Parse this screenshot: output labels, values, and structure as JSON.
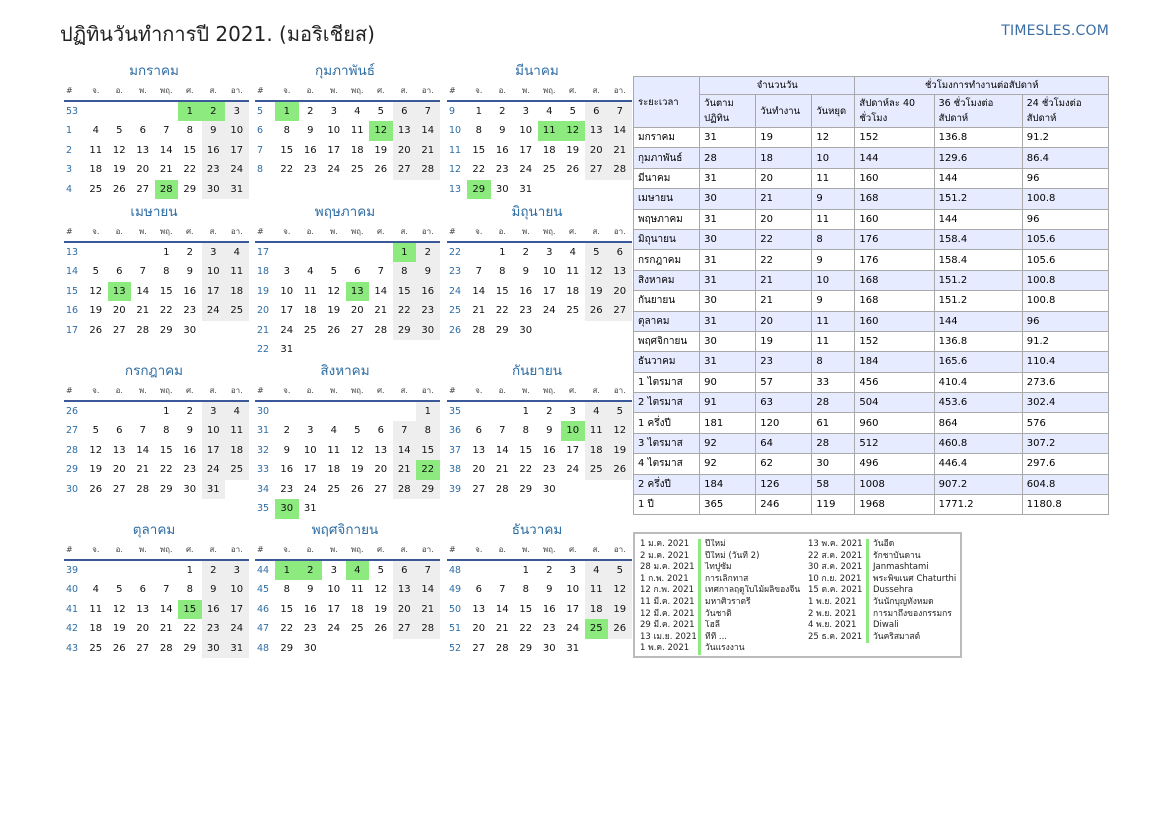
{
  "header": {
    "title": "ปฏิทินวันทำการปี 2021. (มอริเชียส)",
    "brand": "TIMESLES.COM"
  },
  "weekday_labels": [
    "#",
    "จ.",
    "อ.",
    "พ.",
    "พฤ.",
    "ศ.",
    "ส.",
    "อา."
  ],
  "months": [
    {
      "name": "มกราคม",
      "weeks": [
        53,
        1,
        2,
        3,
        4
      ],
      "days": 31,
      "start": 4,
      "holidays": [
        1,
        2,
        28
      ]
    },
    {
      "name": "กุมภาพันธ์",
      "weeks": [
        5,
        6,
        7,
        8
      ],
      "days": 28,
      "start": 0,
      "holidays": [
        1,
        12
      ]
    },
    {
      "name": "มีนาคม",
      "weeks": [
        9,
        10,
        11,
        12,
        13
      ],
      "days": 31,
      "start": 0,
      "holidays": [
        11,
        12,
        29
      ]
    },
    {
      "name": "เมษายน",
      "weeks": [
        13,
        14,
        15,
        16,
        17
      ],
      "days": 30,
      "start": 3,
      "holidays": [
        13
      ]
    },
    {
      "name": "พฤษภาคม",
      "weeks": [
        17,
        18,
        19,
        20,
        21,
        22
      ],
      "days": 31,
      "start": 5,
      "holidays": [
        1,
        13
      ]
    },
    {
      "name": "มิถุนายน",
      "weeks": [
        22,
        23,
        24,
        25,
        26
      ],
      "days": 30,
      "start": 1,
      "holidays": []
    },
    {
      "name": "กรกฎาคม",
      "weeks": [
        26,
        27,
        28,
        29,
        30
      ],
      "days": 31,
      "start": 3,
      "holidays": []
    },
    {
      "name": "สิงหาคม",
      "weeks": [
        30,
        31,
        32,
        33,
        34,
        35
      ],
      "days": 31,
      "start": 6,
      "holidays": [
        22,
        30
      ]
    },
    {
      "name": "กันยายน",
      "weeks": [
        35,
        36,
        37,
        38,
        39
      ],
      "days": 30,
      "start": 2,
      "holidays": [
        10
      ]
    },
    {
      "name": "ตุลาคม",
      "weeks": [
        39,
        40,
        41,
        42,
        43
      ],
      "days": 31,
      "start": 4,
      "holidays": [
        15
      ]
    },
    {
      "name": "พฤศจิกายน",
      "weeks": [
        44,
        45,
        46,
        47,
        48
      ],
      "days": 30,
      "start": 0,
      "holidays": [
        1,
        2,
        4
      ]
    },
    {
      "name": "ธันวาคม",
      "weeks": [
        48,
        49,
        50,
        51,
        52
      ],
      "days": 31,
      "start": 2,
      "holidays": [
        25
      ]
    }
  ],
  "stats": {
    "h_period": "ระยะเวลา",
    "h_days": "จำนวนวัน",
    "h_hours": "ชั่วโมงการทำงานต่อสัปดาห์",
    "h_calendar": "วันตามปฏิทิน",
    "h_work": "วันทำงาน",
    "h_off": "วันหยุด",
    "h_40": "สัปดาห์ละ 40 ชั่วโมง",
    "h_36": "36 ชั่วโมงต่อสัปดาห์",
    "h_24": "24 ชั่วโมงต่อสัปดาห์",
    "rows": [
      [
        "มกราคม",
        "31",
        "19",
        "12",
        "152",
        "136.8",
        "91.2"
      ],
      [
        "กุมภาพันธ์",
        "28",
        "18",
        "10",
        "144",
        "129.6",
        "86.4"
      ],
      [
        "มีนาคม",
        "31",
        "20",
        "11",
        "160",
        "144",
        "96"
      ],
      [
        "เมษายน",
        "30",
        "21",
        "9",
        "168",
        "151.2",
        "100.8"
      ],
      [
        "พฤษภาคม",
        "31",
        "20",
        "11",
        "160",
        "144",
        "96"
      ],
      [
        "มิถุนายน",
        "30",
        "22",
        "8",
        "176",
        "158.4",
        "105.6"
      ],
      [
        "กรกฎาคม",
        "31",
        "22",
        "9",
        "176",
        "158.4",
        "105.6"
      ],
      [
        "สิงหาคม",
        "31",
        "21",
        "10",
        "168",
        "151.2",
        "100.8"
      ],
      [
        "กันยายน",
        "30",
        "21",
        "9",
        "168",
        "151.2",
        "100.8"
      ],
      [
        "ตุลาคม",
        "31",
        "20",
        "11",
        "160",
        "144",
        "96"
      ],
      [
        "พฤศจิกายน",
        "30",
        "19",
        "11",
        "152",
        "136.8",
        "91.2"
      ],
      [
        "ธันวาคม",
        "31",
        "23",
        "8",
        "184",
        "165.6",
        "110.4"
      ],
      [
        "1 ไตรมาส",
        "90",
        "57",
        "33",
        "456",
        "410.4",
        "273.6"
      ],
      [
        "2 ไตรมาส",
        "91",
        "63",
        "28",
        "504",
        "453.6",
        "302.4"
      ],
      [
        "1 ครึ่งปี",
        "181",
        "120",
        "61",
        "960",
        "864",
        "576"
      ],
      [
        "3 ไตรมาส",
        "92",
        "64",
        "28",
        "512",
        "460.8",
        "307.2"
      ],
      [
        "4 ไตรมาส",
        "92",
        "62",
        "30",
        "496",
        "446.4",
        "297.6"
      ],
      [
        "2 ครึ่งปี",
        "184",
        "126",
        "58",
        "1008",
        "907.2",
        "604.8"
      ],
      [
        "1 ปี",
        "365",
        "246",
        "119",
        "1968",
        "1771.2",
        "1180.8"
      ]
    ]
  },
  "holidays": [
    [
      {
        "date": "1 ม.ค. 2021",
        "name": "ปีใหม่"
      },
      {
        "date": "2 ม.ค. 2021",
        "name": "ปีใหม่ (วันที่ 2)"
      },
      {
        "date": "28 ม.ค. 2021",
        "name": "ไทปูซัม"
      },
      {
        "date": "1 ก.พ. 2021",
        "name": "การเลิกทาส"
      },
      {
        "date": "12 ก.พ. 2021",
        "name": "เทศกาลฤดูใบไม้ผลิของจีน"
      },
      {
        "date": "11 มี.ค. 2021",
        "name": "มหาศิวราตรี"
      },
      {
        "date": "12 มี.ค. 2021",
        "name": "วันชาติ"
      },
      {
        "date": "29 มี.ค. 2021",
        "name": "โฮลี"
      },
      {
        "date": "13 เม.ย. 2021",
        "name": "ที่ที ..."
      },
      {
        "date": "1 พ.ค. 2021",
        "name": "วันแรงงาน"
      }
    ],
    [
      {
        "date": "13 พ.ค. 2021",
        "name": "วันอีด"
      },
      {
        "date": "22 ส.ค. 2021",
        "name": "รักชาบันดาน"
      },
      {
        "date": "30 ส.ค. 2021",
        "name": "Janmashtami"
      },
      {
        "date": "10 ก.ย. 2021",
        "name": "พระพิฆเนศ Chaturthi"
      },
      {
        "date": "15 ต.ค. 2021",
        "name": "Dussehra"
      },
      {
        "date": "1 พ.ย. 2021",
        "name": "วันนักบุญทั้งหมด"
      },
      {
        "date": "2 พ.ย. 2021",
        "name": "การมาถึงของกรรมกร"
      },
      {
        "date": "4 พ.ย. 2021",
        "name": "Diwali"
      },
      {
        "date": "25 ธ.ค. 2021",
        "name": "วันคริสมาสต์"
      }
    ]
  ]
}
